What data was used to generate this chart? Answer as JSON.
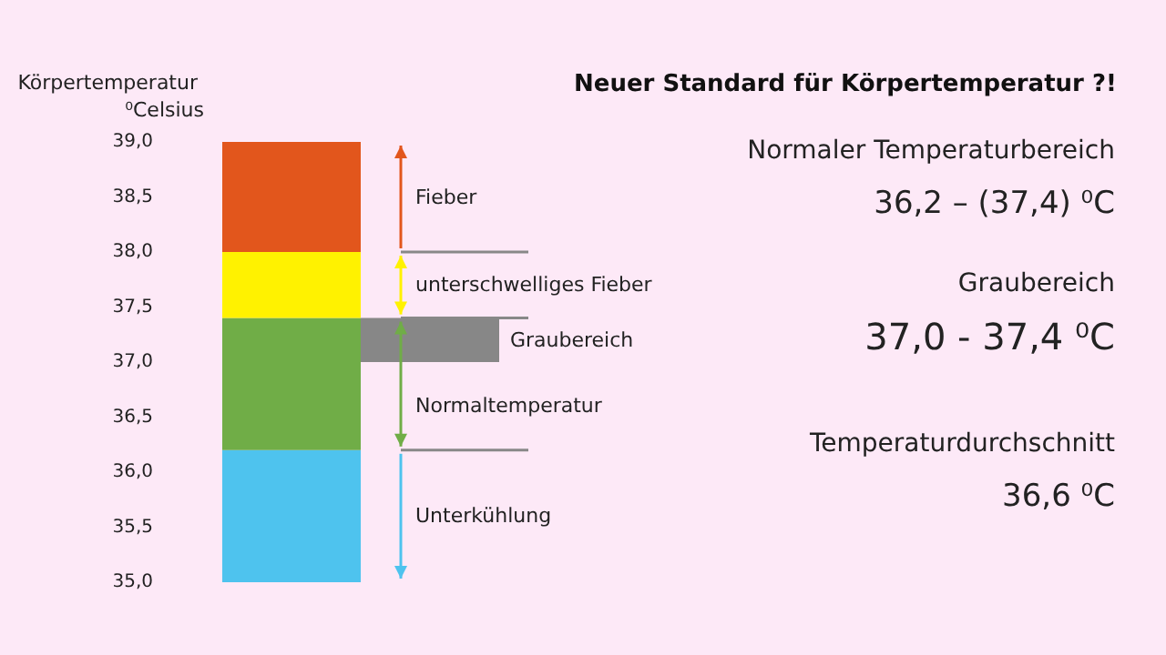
{
  "chart_data": {
    "type": "bar",
    "title": "Neuer Standard für Körpertemperatur ?!",
    "ylabel": "Körpertemperatur ⁰Celsius",
    "categories": [
      null
    ],
    "series": [
      {
        "name": "Unterkühlung",
        "color": "#4ec3ee",
        "base": [
          35
        ],
        "values": [
          1.2
        ]
      },
      {
        "name": "Normaltemperatur",
        "color": "#70ad47",
        "base": [
          36.2
        ],
        "values": [
          1.2
        ]
      },
      {
        "name": "unterschwelliges Fieber",
        "color": "#fff200",
        "base": [
          37.4
        ],
        "values": [
          0.6
        ]
      },
      {
        "name": "Fieber",
        "color": "#e2561c",
        "base": [
          38.0
        ],
        "values": [
          1.0
        ]
      }
    ],
    "ylim": [
      35,
      39
    ],
    "yticks": [
      {
        "value": 35,
        "label": "35,0"
      },
      {
        "value": 35.5,
        "label": "35,5"
      },
      {
        "value": 36,
        "label": "36,0"
      },
      {
        "value": 36.5,
        "label": "36,5"
      },
      {
        "value": 37,
        "label": "37,0"
      },
      {
        "value": 37.5,
        "label": "37,5"
      },
      {
        "value": 38,
        "label": "38,0"
      },
      {
        "value": 38.5,
        "label": "38,5"
      },
      {
        "value": 39,
        "label": "39,0"
      }
    ],
    "grid": false,
    "ref_lines": [
      {
        "axis": "y",
        "value": 38.0,
        "color": "#888888"
      },
      {
        "axis": "y",
        "value": 37.4,
        "color": "#888888"
      },
      {
        "axis": "y",
        "value": 36.2,
        "color": "#888888"
      }
    ],
    "bands": [
      {
        "axis": "y",
        "from": 37.0,
        "to": 37.4,
        "label": "Graubereich",
        "color": "#878787"
      }
    ],
    "annotations": [
      "Normaler Temperaturbereich",
      "36,2 – (37,4) ⁰C",
      "Graubereich",
      "37,0 - 37,4 ⁰C",
      "Temperaturdurchschnitt",
      "36,6 ⁰C"
    ]
  }
}
